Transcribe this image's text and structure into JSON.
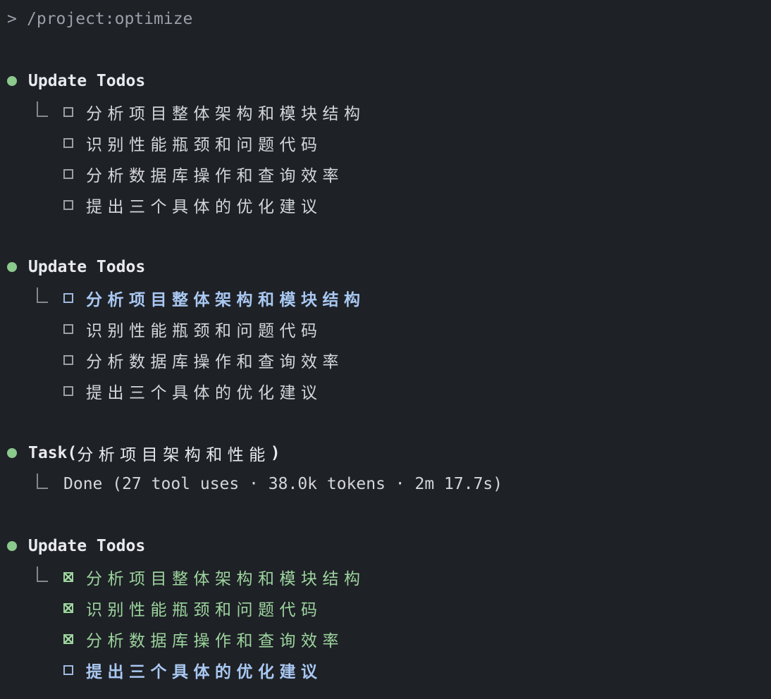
{
  "colors": {
    "background": "#1e2126",
    "prompt_text": "#9aa0a8",
    "title_text": "#e8eaee",
    "item_text": "#d4d6da",
    "muted": "#85898f",
    "bullet_green": "#8cc98c",
    "completed_green": "#9dd49e",
    "in_progress_blue": "#a9c8f2",
    "checkbox_gray": "#9ba0a6",
    "checkbox_blue": "#9fb9de"
  },
  "prompt": {
    "symbol": ">",
    "command": "/project:optimize"
  },
  "blocks": [
    {
      "type": "tool_call",
      "title": "Update Todos",
      "items": [
        {
          "status": "pending",
          "text": "分析项目整体架构和模块结构"
        },
        {
          "status": "pending",
          "text": "识别性能瓶颈和问题代码"
        },
        {
          "status": "pending",
          "text": "分析数据库操作和查询效率"
        },
        {
          "status": "pending",
          "text": "提出三个具体的优化建议"
        }
      ]
    },
    {
      "type": "tool_call",
      "title": "Update Todos",
      "items": [
        {
          "status": "in_progress",
          "text": "分析项目整体架构和模块结构"
        },
        {
          "status": "pending",
          "text": "识别性能瓶颈和问题代码"
        },
        {
          "status": "pending",
          "text": "分析数据库操作和查询效率"
        },
        {
          "status": "pending",
          "text": "提出三个具体的优化建议"
        }
      ]
    },
    {
      "type": "task",
      "title": "Task",
      "paren_open": "(",
      "arg": "分析项目架构和性能",
      "paren_close": ")",
      "result": "Done (27 tool uses · 38.0k tokens · 2m 17.7s)"
    },
    {
      "type": "tool_call",
      "title": "Update Todos",
      "items": [
        {
          "status": "completed",
          "text": "分析项目整体架构和模块结构"
        },
        {
          "status": "completed",
          "text": "识别性能瓶颈和问题代码"
        },
        {
          "status": "completed",
          "text": "分析数据库操作和查询效率"
        },
        {
          "status": "in_progress",
          "text": "提出三个具体的优化建议"
        }
      ]
    }
  ]
}
